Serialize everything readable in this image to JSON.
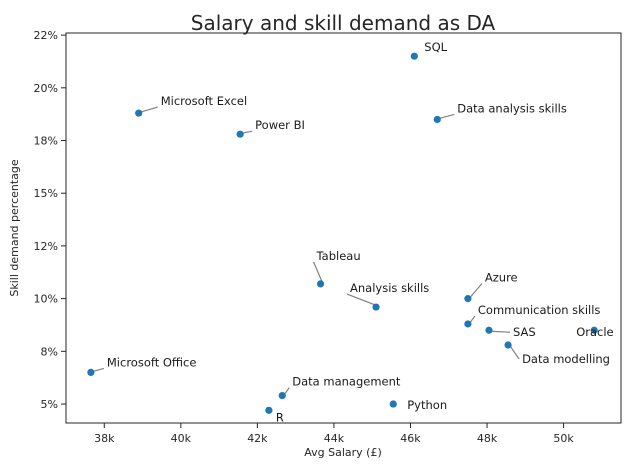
{
  "chart_data": {
    "type": "scatter",
    "title": "Salary and skill demand as DA",
    "xlabel": "Avg Salary (£)",
    "ylabel": "Skill demand percentage",
    "xlim": [
      37000,
      51500
    ],
    "ylim": [
      4.1,
      22.6
    ],
    "x_ticks": [
      38000,
      40000,
      42000,
      44000,
      46000,
      48000,
      50000
    ],
    "x_tick_labels": [
      "38k",
      "40k",
      "42k",
      "44k",
      "46k",
      "48k",
      "50k"
    ],
    "y_ticks": [
      5,
      7.5,
      10,
      12.5,
      15,
      17.5,
      20,
      22.5
    ],
    "y_tick_labels": [
      "5%",
      "8%",
      "10%",
      "12%",
      "15%",
      "18%",
      "20%",
      "22%"
    ],
    "grid": false,
    "marker_color": "#1f77b4",
    "points": [
      {
        "label": "SQL",
        "x": 46100,
        "y": 21.5
      },
      {
        "label": "Microsoft Excel",
        "x": 38900,
        "y": 18.8
      },
      {
        "label": "Power BI",
        "x": 41550,
        "y": 17.8
      },
      {
        "label": "Data analysis skills",
        "x": 46700,
        "y": 18.5
      },
      {
        "label": "Tableau",
        "x": 43650,
        "y": 10.7
      },
      {
        "label": "Analysis skills",
        "x": 45100,
        "y": 9.6
      },
      {
        "label": "Azure",
        "x": 47500,
        "y": 10.0
      },
      {
        "label": "Communication skills",
        "x": 47500,
        "y": 8.8
      },
      {
        "label": "SAS",
        "x": 48050,
        "y": 8.5
      },
      {
        "label": "Oracle",
        "x": 50800,
        "y": 8.5
      },
      {
        "label": "Data modelling",
        "x": 48550,
        "y": 7.8
      },
      {
        "label": "Microsoft Office",
        "x": 37650,
        "y": 6.5
      },
      {
        "label": "Data management",
        "x": 42650,
        "y": 5.4
      },
      {
        "label": "R",
        "x": 42300,
        "y": 4.7
      },
      {
        "label": "Python",
        "x": 45550,
        "y": 5.0
      }
    ]
  }
}
